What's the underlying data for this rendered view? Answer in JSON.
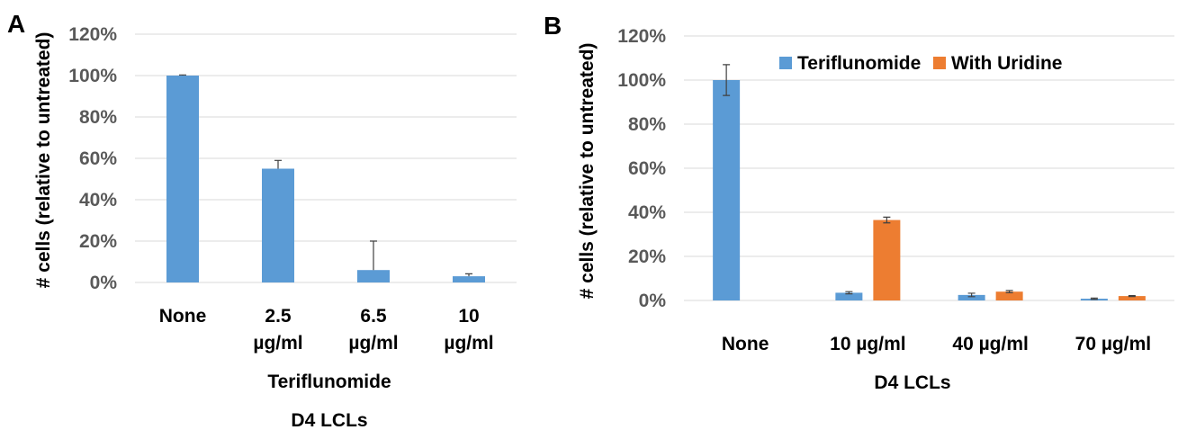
{
  "chart_data": [
    {
      "panel": "A",
      "type": "bar",
      "categories": [
        [
          "None"
        ],
        [
          "2.5",
          "µg/ml"
        ],
        [
          "6.5",
          "µg/ml"
        ],
        [
          "10",
          "µg/ml"
        ]
      ],
      "series": [
        {
          "name": "",
          "color": "#5b9bd5",
          "values": [
            100,
            55,
            6,
            3
          ],
          "errors": [
            0.3,
            4,
            14,
            1.2
          ],
          "error_style": "up"
        }
      ],
      "ylabel": "# cells (relative to untreated)",
      "xlabel_lines": [
        "Teriflunomide",
        "D4 LCLs"
      ],
      "ylim": [
        0,
        120
      ],
      "yticks": [
        0,
        20,
        40,
        60,
        80,
        100,
        120
      ],
      "ytick_format": "percent",
      "grid": true,
      "legend": "none"
    },
    {
      "panel": "B",
      "type": "bar",
      "categories": [
        [
          "None"
        ],
        [
          "10  µg/ml"
        ],
        [
          "40  µg/ml"
        ],
        [
          "70  µg/ml"
        ]
      ],
      "series": [
        {
          "name": "Teriflunomide",
          "color": "#5b9bd5",
          "values": [
            100,
            3.5,
            2.5,
            0.8
          ],
          "errors": [
            7,
            0.5,
            0.8,
            0.3
          ],
          "error_style": "both"
        },
        {
          "name": "With Uridine",
          "color": "#ed7d31",
          "values": [
            null,
            36.5,
            4,
            2
          ],
          "errors": [
            null,
            1.3,
            0.5,
            0.2
          ],
          "error_style": "both"
        }
      ],
      "ylabel": "# cells (relative to untreated)",
      "xlabel_lines": [
        "D4 LCLs"
      ],
      "ylim": [
        0,
        120
      ],
      "yticks": [
        0,
        20,
        40,
        60,
        80,
        100,
        120
      ],
      "ytick_format": "percent",
      "grid": true,
      "legend": "top"
    }
  ]
}
